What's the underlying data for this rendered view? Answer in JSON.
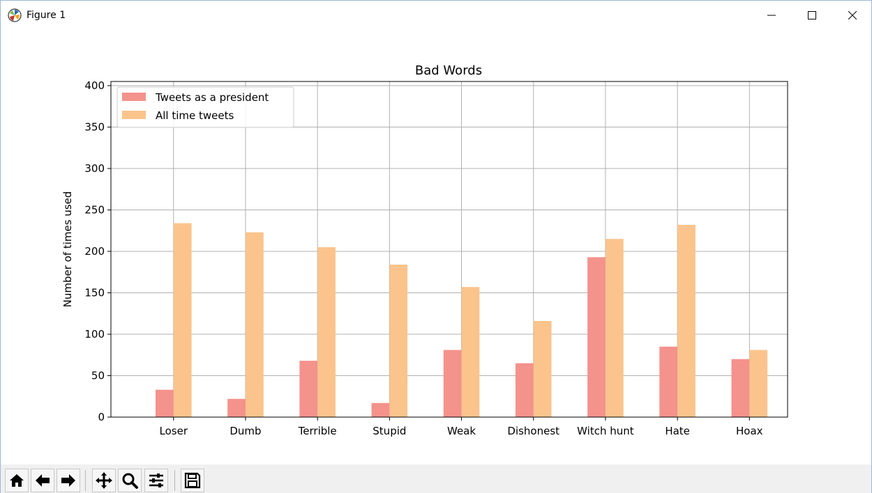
{
  "window": {
    "title": "Figure 1"
  },
  "toolbar": {
    "buttons": [
      "home-icon",
      "back-arrow-icon",
      "forward-arrow-icon",
      "pan-icon",
      "zoom-icon",
      "configure-subplots-icon",
      "save-icon"
    ]
  },
  "chart_data": {
    "type": "bar",
    "title": "Bad Words",
    "xlabel": "",
    "ylabel": "Number of times used",
    "categories": [
      "Loser",
      "Dumb",
      "Terrible",
      "Stupid",
      "Weak",
      "Dishonest",
      "Witch hunt",
      "Hate",
      "Hoax"
    ],
    "series": [
      {
        "name": "Tweets as a president",
        "color": "#f4928c",
        "values": [
          33,
          22,
          68,
          17,
          81,
          65,
          193,
          85,
          70
        ]
      },
      {
        "name": "All time tweets",
        "color": "#fbc48c",
        "values": [
          234,
          223,
          205,
          184,
          157,
          116,
          215,
          232,
          81
        ]
      }
    ],
    "ylim": [
      0,
      405
    ],
    "yticks": [
      0,
      50,
      100,
      150,
      200,
      250,
      300,
      350,
      400
    ],
    "grid": true,
    "legend_position": "top-left"
  }
}
